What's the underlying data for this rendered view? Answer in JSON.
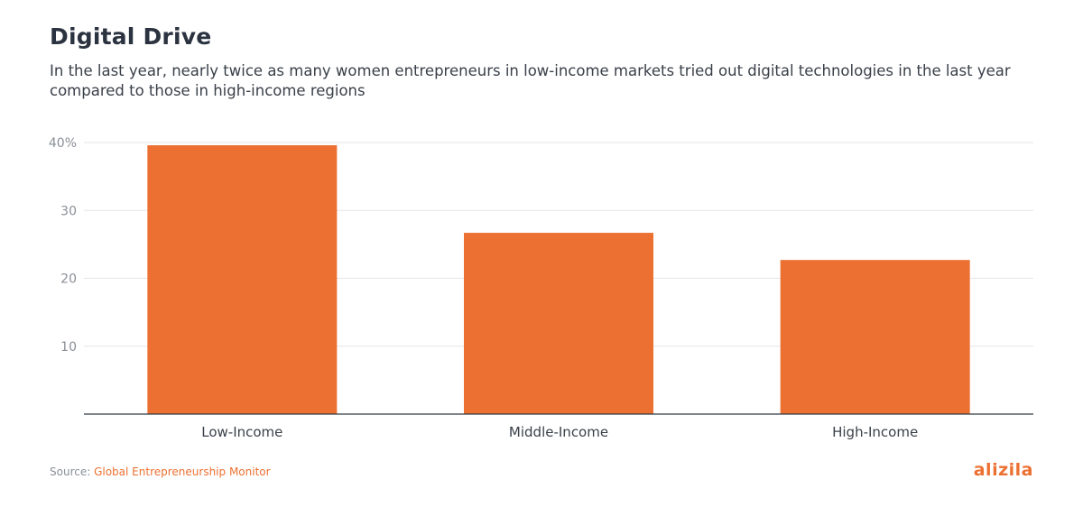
{
  "header": {
    "title": "Digital Drive",
    "subtitle": "In the last year, nearly twice as many women entrepreneurs in low-income markets tried out digital technologies in the last year compared to those in high-income regions"
  },
  "chart_data": {
    "type": "bar",
    "categories": [
      "Low-Income",
      "Middle-Income",
      "High-Income"
    ],
    "values": [
      39.6,
      26.7,
      22.7
    ],
    "ylim": [
      0,
      40
    ],
    "yticks": [
      10,
      20,
      30,
      40
    ],
    "ytick_labels": [
      "10",
      "20",
      "30",
      "40%"
    ],
    "grid": true,
    "bar_color": "#ec7031",
    "title": "Digital Drive",
    "xlabel": "",
    "ylabel": ""
  },
  "footer": {
    "source_prefix": "Source: ",
    "source_name": "Global Entrepreneurship Monitor",
    "brand": "alizila"
  },
  "colors": {
    "accent": "#ec7031",
    "title": "#2b3340",
    "grid": "#e6e6e6",
    "axis": "#333a44"
  }
}
